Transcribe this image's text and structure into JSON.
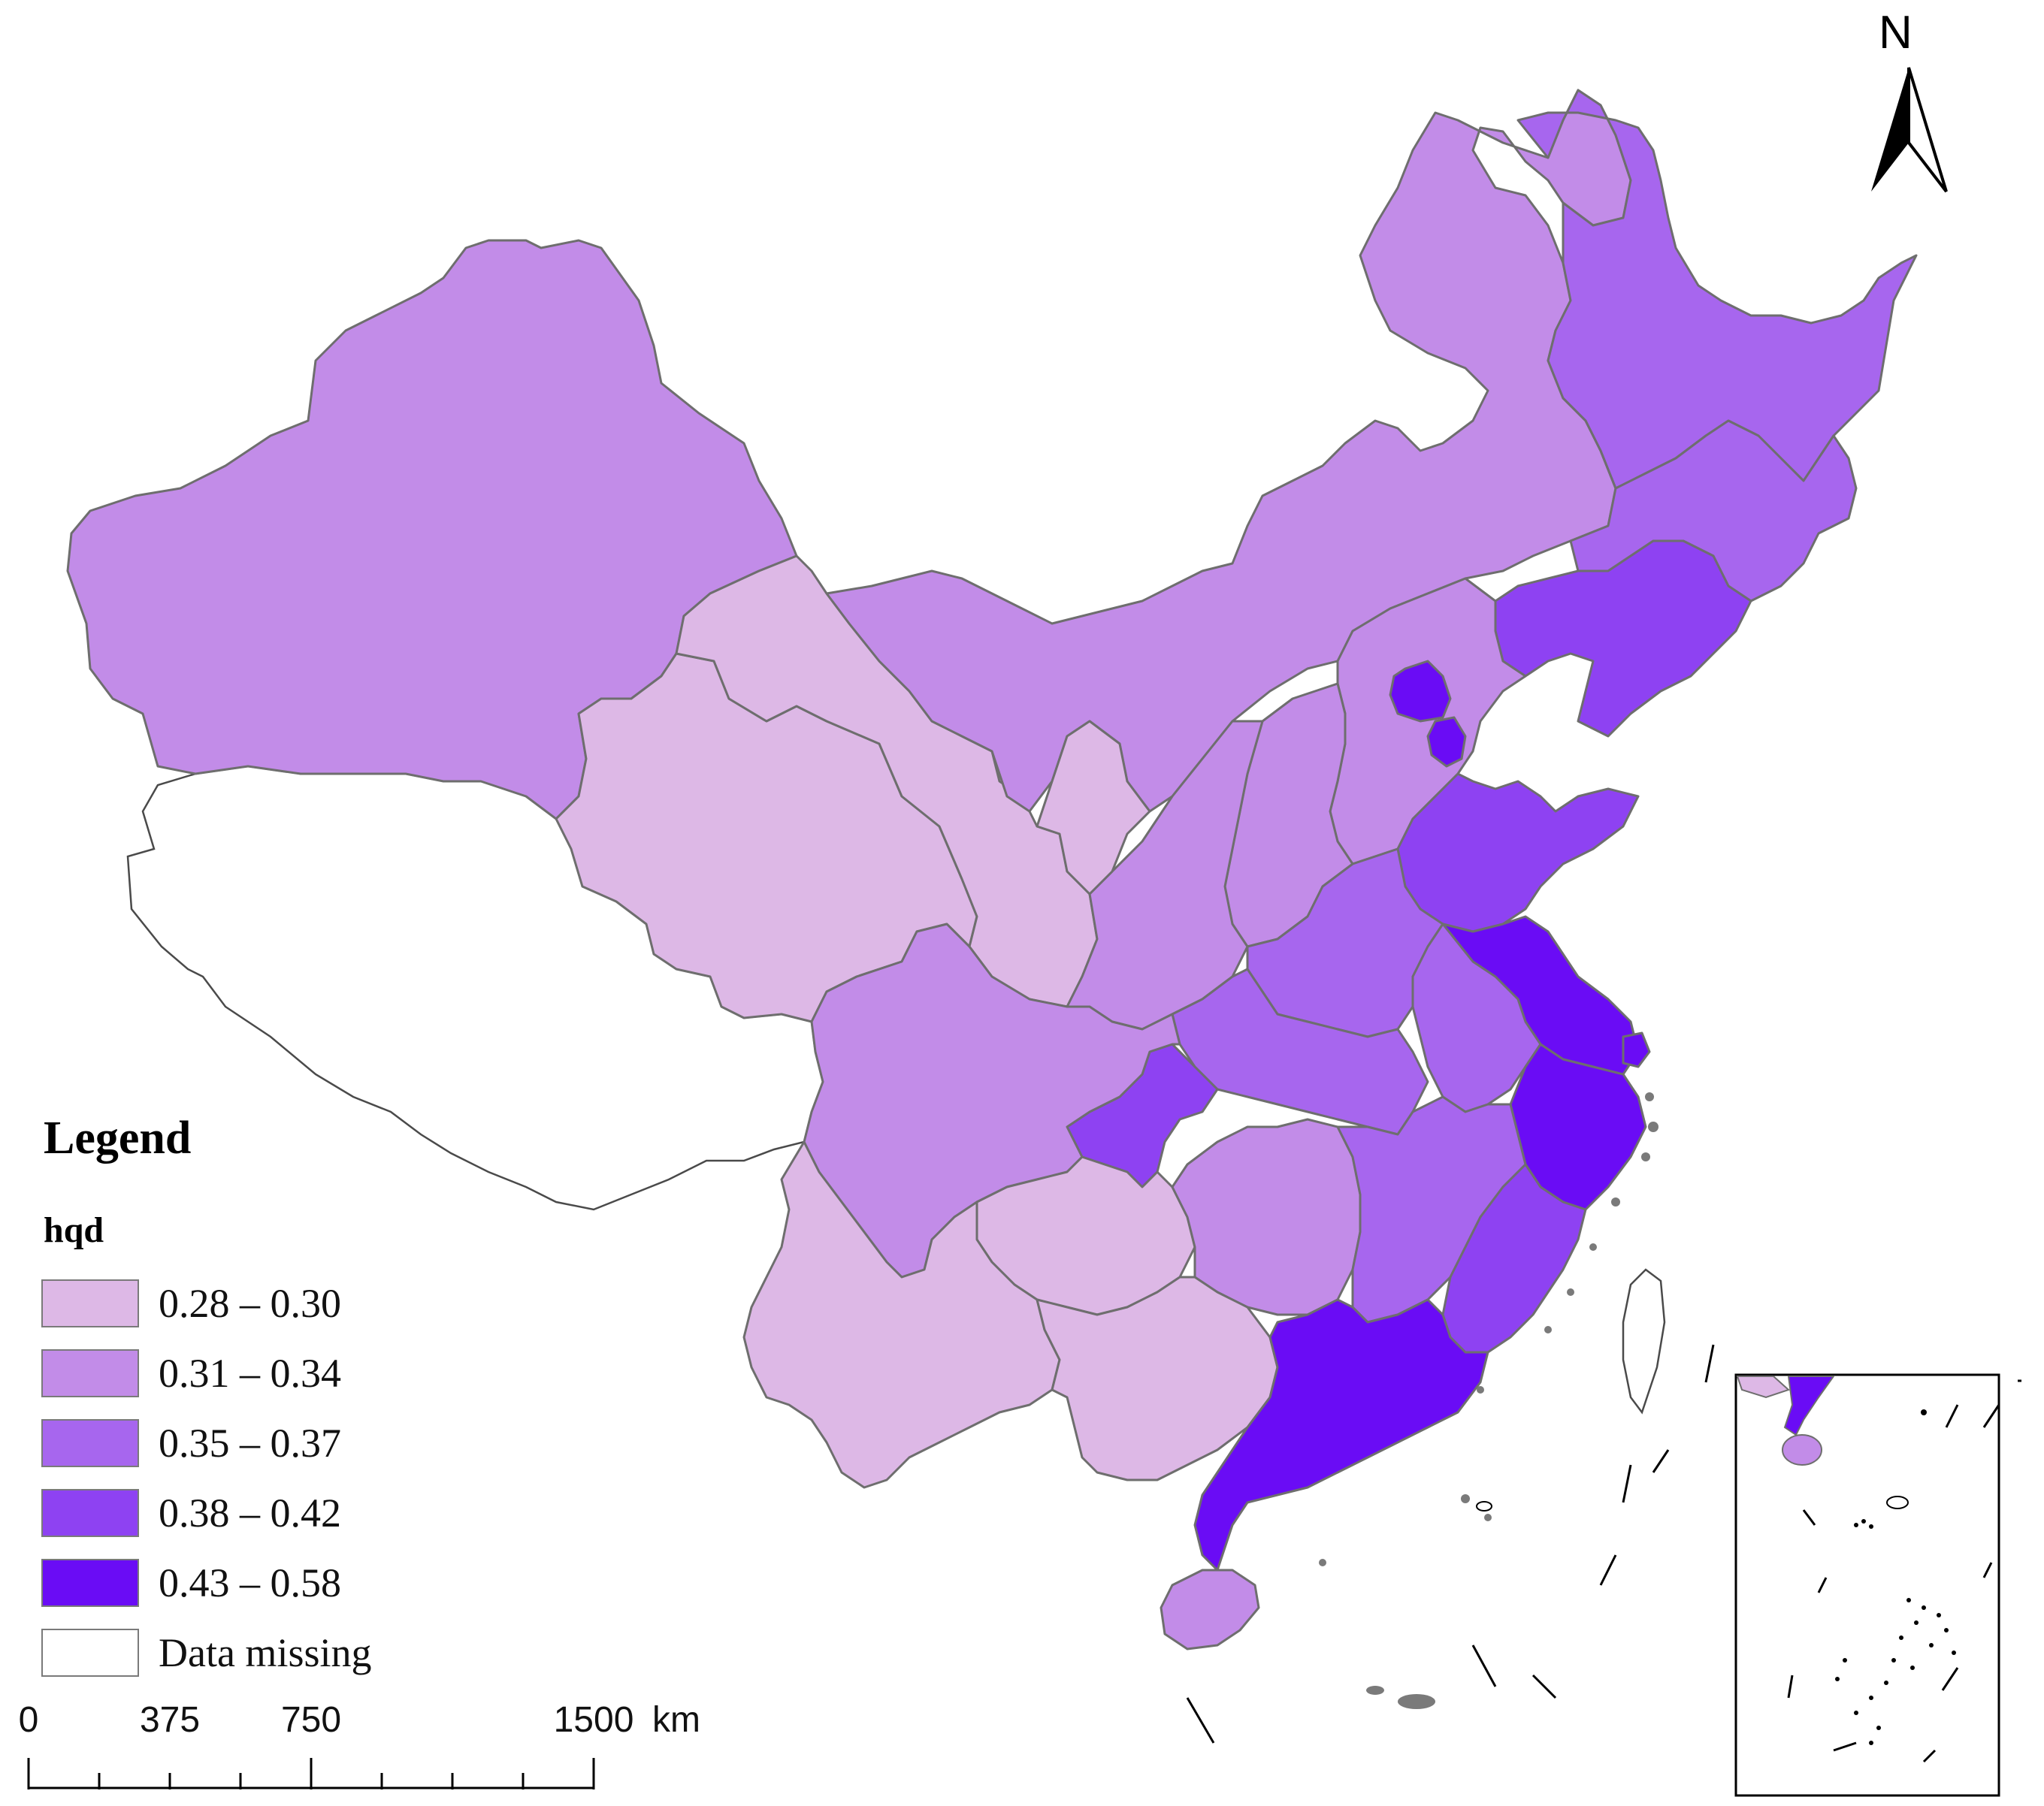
{
  "legend": {
    "title": "Legend",
    "field": "hqd",
    "classes": [
      {
        "label": "0.28 – 0.30",
        "color": "#ddb8e6"
      },
      {
        "label": "0.31 – 0.34",
        "color": "#c28ce8"
      },
      {
        "label": "0.35 – 0.37",
        "color": "#a766ee"
      },
      {
        "label": "0.38 – 0.42",
        "color": "#8e42f2"
      },
      {
        "label": "0.43 – 0.58",
        "color": "#6a0cf5"
      },
      {
        "label": "Data missing",
        "color": "#ffffff"
      }
    ]
  },
  "scale_bar": {
    "ticks": [
      "0",
      "375",
      "750",
      "1500"
    ],
    "unit": "km"
  },
  "north_arrow": {
    "label": "N"
  },
  "colors": {
    "boundary": "#6e6e6e",
    "missing_outline": "#4a4a4a"
  }
}
